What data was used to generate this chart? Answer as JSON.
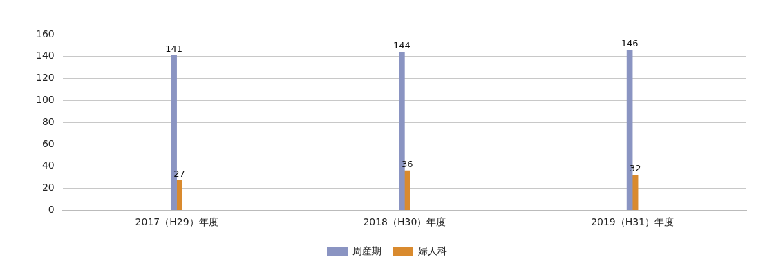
{
  "chart_data": {
    "type": "bar",
    "categories": [
      "2017（H29）年度",
      "2018（H30）年度",
      "2019（H31）年度"
    ],
    "series": [
      {
        "name": "周産期",
        "color": "#8a94c2",
        "values": [
          141,
          144,
          146
        ]
      },
      {
        "name": "婦人科",
        "color": "#d98a2e",
        "values": [
          27,
          36,
          32
        ]
      }
    ],
    "ylim": [
      0,
      160
    ],
    "yticks": [
      0,
      20,
      40,
      60,
      80,
      100,
      120,
      140,
      160
    ],
    "grid": "y",
    "legend": "bottom",
    "data_labels": true
  }
}
